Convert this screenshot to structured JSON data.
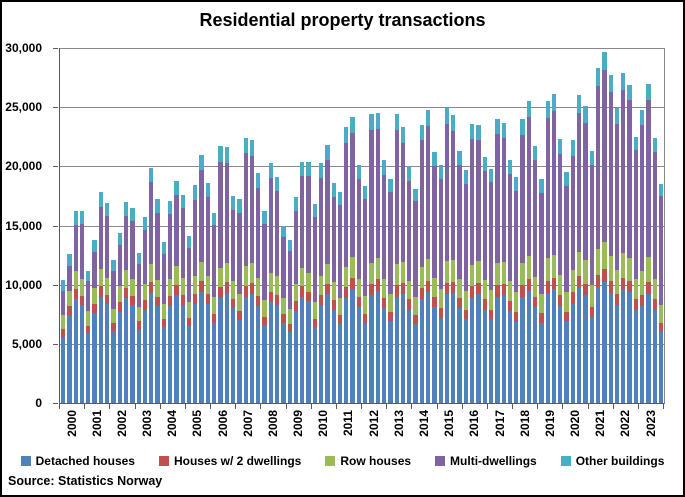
{
  "title": "Residential property transactions",
  "source": "Source: Statistics Norway",
  "chart_data": {
    "type": "bar",
    "stacked": true,
    "title": "Residential property transactions",
    "xlabel": "",
    "ylabel": "",
    "ylim": [
      0,
      30000
    ],
    "ytick_step": 5000,
    "ytick_labels": [
      "30,000",
      "25,000",
      "20,000",
      "15,000",
      "10,000",
      "5,000",
      "0"
    ],
    "grid": true,
    "legend_position": "bottom",
    "years": [
      "2000",
      "2001",
      "2002",
      "2003",
      "2004",
      "2005",
      "2006",
      "2007",
      "2008",
      "2009",
      "2010",
      "2011",
      "2012",
      "2013",
      "2014",
      "2015",
      "2016",
      "2017",
      "2018",
      "2019",
      "2020",
      "2021",
      "2022",
      "2023"
    ],
    "bars_per_year": 4,
    "x_unit": "quarter",
    "series": [
      {
        "name": "Detached houses",
        "color": "#4F81BD",
        "values": [
          5600,
          7400,
          8800,
          8300,
          5900,
          7600,
          9000,
          8400,
          6100,
          7700,
          8900,
          8300,
          6200,
          7900,
          9300,
          8200,
          6400,
          8200,
          9100,
          8300,
          6500,
          8400,
          9400,
          8400,
          6800,
          8900,
          9300,
          8000,
          7000,
          9000,
          9200,
          8200,
          6600,
          8500,
          8300,
          6800,
          6000,
          7800,
          9000,
          8600,
          6400,
          8300,
          9200,
          7900,
          6700,
          8900,
          9600,
          8100,
          6800,
          9100,
          9500,
          8000,
          6900,
          9000,
          9200,
          7900,
          6700,
          8800,
          9400,
          8100,
          7200,
          9200,
          9300,
          8000,
          7100,
          8900,
          9200,
          7900,
          7100,
          9000,
          9100,
          7800,
          6900,
          9000,
          9500,
          8100,
          6800,
          9300,
          9600,
          8200,
          6900,
          8400,
          9700,
          9100,
          7300,
          9800,
          10200,
          9300,
          8300,
          9600,
          9400,
          7900,
          8200,
          9200,
          7900,
          6100
        ]
      },
      {
        "name": "Houses w/ 2 dwellings",
        "color": "#C0504D",
        "values": [
          650,
          800,
          850,
          750,
          650,
          800,
          850,
          750,
          650,
          800,
          850,
          750,
          700,
          800,
          900,
          750,
          700,
          850,
          900,
          800,
          700,
          850,
          900,
          800,
          750,
          900,
          900,
          800,
          750,
          900,
          950,
          850,
          700,
          850,
          850,
          700,
          650,
          800,
          850,
          800,
          700,
          850,
          900,
          800,
          750,
          900,
          950,
          850,
          750,
          950,
          950,
          850,
          750,
          950,
          950,
          850,
          750,
          900,
          950,
          850,
          800,
          950,
          950,
          850,
          800,
          950,
          950,
          850,
          800,
          950,
          950,
          850,
          800,
          950,
          1000,
          850,
          800,
          1000,
          1000,
          900,
          800,
          950,
          1050,
          1000,
          850,
          1050,
          1100,
          1050,
          950,
          1000,
          950,
          850,
          950,
          1000,
          850,
          700
        ]
      },
      {
        "name": "Row houses",
        "color": "#9BBB59",
        "values": [
          1150,
          1300,
          1500,
          1400,
          1200,
          1350,
          1500,
          1400,
          1200,
          1350,
          1500,
          1400,
          1250,
          1400,
          1550,
          1450,
          1300,
          1450,
          1550,
          1450,
          1300,
          1500,
          1600,
          1500,
          1400,
          1600,
          1650,
          1500,
          1450,
          1650,
          1700,
          1550,
          1400,
          1600,
          1550,
          1350,
          1300,
          1500,
          1600,
          1550,
          1400,
          1600,
          1650,
          1500,
          1450,
          1700,
          1750,
          1550,
          1500,
          1750,
          1800,
          1600,
          1550,
          1800,
          1800,
          1600,
          1550,
          1800,
          1850,
          1650,
          1600,
          1850,
          1850,
          1650,
          1600,
          1800,
          1850,
          1650,
          1650,
          1850,
          1850,
          1650,
          1650,
          1900,
          1900,
          1700,
          1650,
          1950,
          1950,
          1750,
          1700,
          1850,
          2050,
          1950,
          1800,
          2200,
          2300,
          2100,
          2000,
          2100,
          1900,
          1700,
          2000,
          2100,
          1750,
          1500
        ]
      },
      {
        "name": "Multi-dwellings",
        "color": "#8064A2",
        "values": [
          2100,
          2100,
          3900,
          4650,
          2550,
          3000,
          5250,
          5250,
          3200,
          3500,
          4550,
          4950,
          3600,
          4500,
          6900,
          5700,
          4200,
          5450,
          6000,
          5900,
          4600,
          6450,
          7800,
          6750,
          6100,
          9000,
          8450,
          6050,
          6900,
          9550,
          9050,
          7600,
          6450,
          8100,
          7200,
          5150,
          4900,
          6150,
          7700,
          8200,
          7250,
          8300,
          8750,
          7250,
          7800,
          10500,
          10550,
          8400,
          8150,
          11250,
          10900,
          8850,
          8600,
          11300,
          10050,
          8450,
          8050,
          10700,
          11250,
          9400,
          9350,
          11550,
          10900,
          9600,
          9050,
          10650,
          10200,
          9250,
          9100,
          10900,
          10500,
          9050,
          8600,
          10800,
          11750,
          9850,
          8500,
          11850,
          12150,
          10200,
          8950,
          9700,
          11750,
          11650,
          10150,
          13750,
          14550,
          13800,
          12300,
          13750,
          13350,
          10900,
          12350,
          13300,
          10750,
          9200
        ]
      },
      {
        "name": "Other buildings",
        "color": "#4BACC6",
        "values": [
          900,
          1000,
          1150,
          1100,
          900,
          1050,
          1200,
          1100,
          950,
          1050,
          1200,
          1100,
          950,
          1100,
          1250,
          1100,
          1000,
          1150,
          1250,
          1150,
          1000,
          1200,
          1300,
          1150,
          1050,
          1300,
          1300,
          1150,
          1100,
          1300,
          1300,
          1200,
          1050,
          1250,
          1200,
          1000,
          950,
          1150,
          1250,
          1250,
          1050,
          1250,
          1300,
          1150,
          1100,
          1300,
          1350,
          1200,
          1100,
          1350,
          1350,
          1200,
          1100,
          1350,
          1300,
          1200,
          1050,
          1300,
          1350,
          1200,
          1150,
          1350,
          1300,
          1200,
          1150,
          1300,
          1300,
          1150,
          1150,
          1300,
          1300,
          1150,
          1150,
          1350,
          1350,
          1200,
          1150,
          1400,
          1400,
          1250,
          1150,
          1300,
          1450,
          1400,
          1200,
          1500,
          1550,
          1450,
          1350,
          1450,
          1300,
          1150,
          1300,
          1400,
          1150,
          1000
        ]
      }
    ]
  }
}
